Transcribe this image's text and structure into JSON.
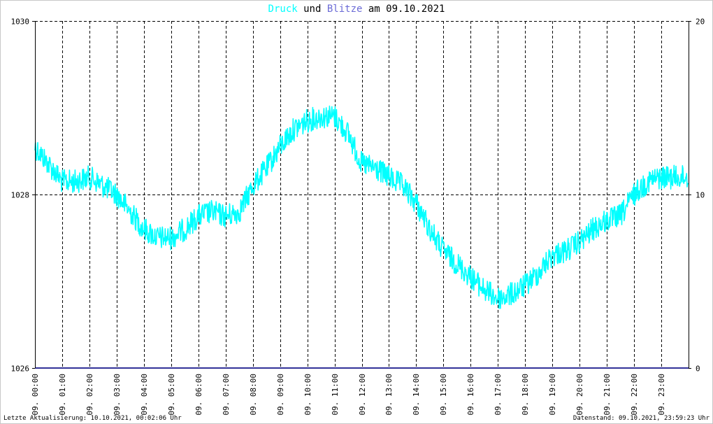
{
  "header": {
    "title_druck": "Druck",
    "title_und": "und",
    "title_blitze": "Blitze",
    "title_am": "am",
    "title_date": "09.10.2021"
  },
  "footer": {
    "left": "Letzte Aktualisierung: 10.10.2021, 00:02:06 Uhr",
    "right": "Datenstand: 09.10.2021, 23:59:23 Uhr"
  },
  "colors": {
    "pressure": "#00ffff",
    "lightning": "#333399",
    "grid": "#000000"
  },
  "chart_data": {
    "type": "line",
    "title": "Druck und Blitze am 09.10.2021",
    "x_range_hours": [
      0,
      24
    ],
    "y_left": {
      "min": 1026,
      "max": 1030,
      "ticks": [
        "1026",
        "1028",
        "1030"
      ]
    },
    "y_right": {
      "min": 0,
      "max": 20,
      "ticks": [
        "0",
        "10",
        "20"
      ]
    },
    "x_tick_labels": [
      "09. 00:00",
      "09. 01:00",
      "09. 02:00",
      "09. 03:00",
      "09. 04:00",
      "09. 05:00",
      "09. 06:00",
      "09. 07:00",
      "09. 08:00",
      "09. 09:00",
      "09. 10:00",
      "09. 11:00",
      "09. 12:00",
      "09. 13:00",
      "09. 14:00",
      "09. 15:00",
      "09. 16:00",
      "09. 17:00",
      "09. 18:00",
      "09. 19:00",
      "09. 20:00",
      "09. 21:00",
      "09. 22:00",
      "09. 23:00"
    ],
    "grid": true,
    "series": [
      {
        "name": "Druck",
        "axis": "left",
        "x": [
          0,
          0.5,
          1,
          1.5,
          2,
          2.5,
          3,
          3.5,
          4,
          4.5,
          5,
          5.5,
          6,
          6.5,
          7,
          7.5,
          8,
          8.5,
          9,
          9.5,
          10,
          10.5,
          11,
          11.5,
          12,
          12.5,
          13,
          13.5,
          14,
          14.5,
          15,
          15.5,
          16,
          16.5,
          17,
          17.5,
          18,
          18.5,
          19,
          19.5,
          20,
          20.5,
          21,
          21.5,
          22,
          22.5,
          23,
          23.5,
          24
        ],
        "values": [
          1028.55,
          1028.35,
          1028.15,
          1028.15,
          1028.2,
          1028.1,
          1028.0,
          1027.8,
          1027.6,
          1027.5,
          1027.5,
          1027.6,
          1027.75,
          1027.8,
          1027.75,
          1027.8,
          1028.1,
          1028.3,
          1028.55,
          1028.75,
          1028.85,
          1028.9,
          1028.9,
          1028.7,
          1028.35,
          1028.3,
          1028.2,
          1028.1,
          1027.9,
          1027.6,
          1027.35,
          1027.2,
          1027.05,
          1026.9,
          1026.8,
          1026.85,
          1026.95,
          1027.1,
          1027.3,
          1027.35,
          1027.45,
          1027.6,
          1027.7,
          1027.75,
          1028.0,
          1028.15,
          1028.2,
          1028.2,
          1028.2
        ]
      },
      {
        "name": "Blitze",
        "axis": "right",
        "x": [
          0,
          24
        ],
        "values": [
          0,
          0
        ]
      }
    ]
  }
}
